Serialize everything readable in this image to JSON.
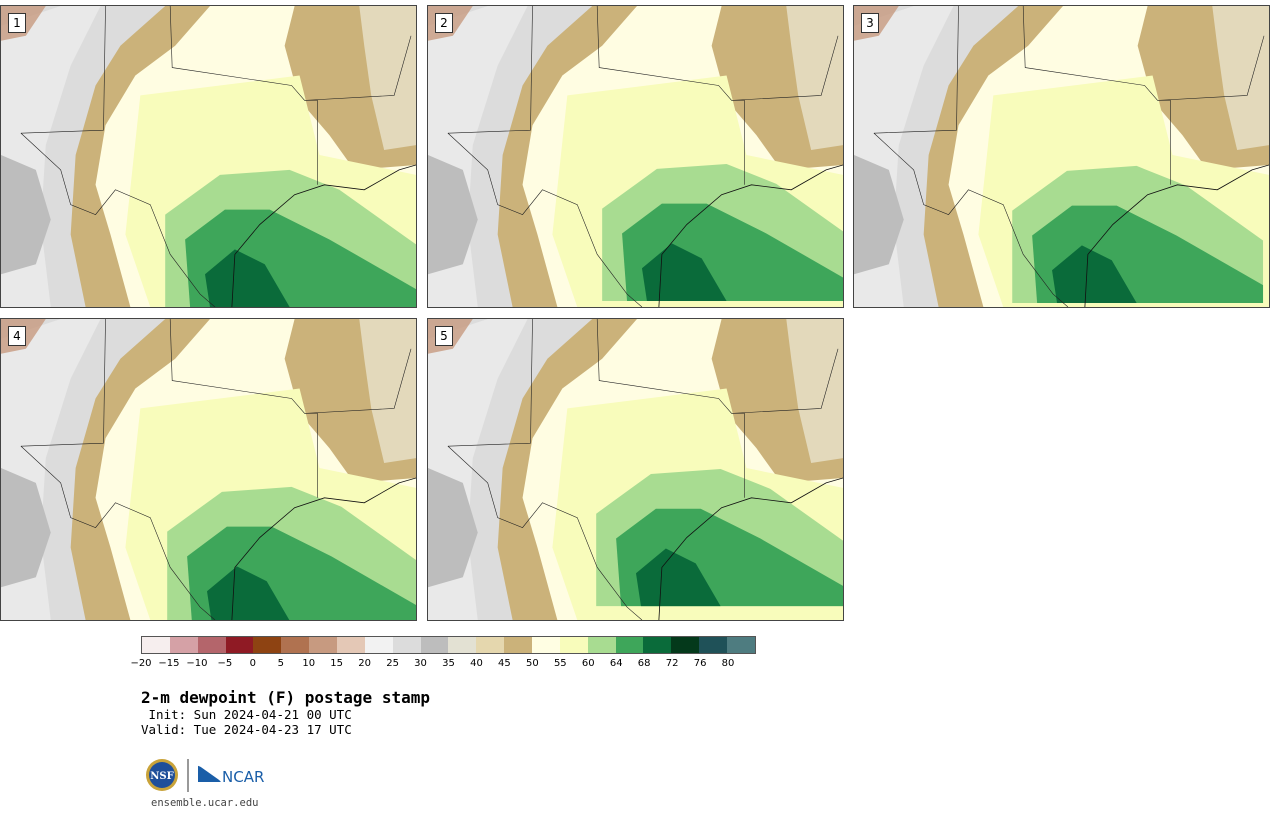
{
  "title": "2-m dewpoint (F) postage stamp",
  "init": " Init: Sun 2024-04-21 00 UTC",
  "valid": "Valid: Tue 2024-04-23 17 UTC",
  "site": "ensemble.ucar.edu",
  "logos": {
    "nsf": "NSF",
    "ncar": "NCAR"
  },
  "panels": [
    {
      "label": "1"
    },
    {
      "label": "2"
    },
    {
      "label": "3"
    },
    {
      "label": "4"
    },
    {
      "label": "5"
    }
  ],
  "colorbar": {
    "colors": [
      "#f6eeee",
      "#d5a1a6",
      "#b4656b",
      "#8f1a24",
      "#8e4312",
      "#b07250",
      "#c79a80",
      "#e4c8b6",
      "#f2f2f2",
      "#dcdcdc",
      "#bdbdbd",
      "#e3e1d3",
      "#e5d7ae",
      "#cbb27a",
      "#fffee3",
      "#f8fcbb",
      "#a8dc91",
      "#3ea65a",
      "#0a6b3a",
      "#04391b",
      "#1f5158",
      "#4e7c80"
    ],
    "tick_labels": [
      "−20",
      "−15",
      "−10",
      "−5",
      "0",
      "5",
      "10",
      "15",
      "20",
      "25",
      "30",
      "35",
      "40",
      "45",
      "50",
      "55",
      "60",
      "64",
      "68",
      "72",
      "76",
      "80"
    ]
  }
}
